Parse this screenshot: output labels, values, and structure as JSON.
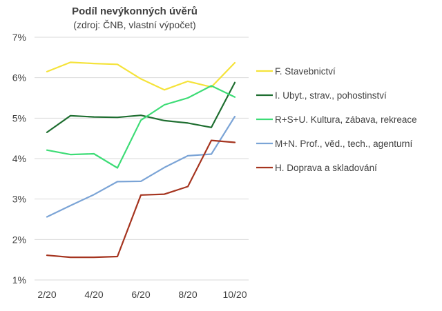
{
  "chart_data": {
    "type": "line",
    "title": "Podíl nevýkonných úvěrů",
    "subtitle": "(zdroj: ČNB, vlastní výpočet)",
    "x": [
      "2/20",
      "3/20",
      "4/20",
      "5/20",
      "6/20",
      "7/20",
      "8/20",
      "9/20",
      "10/20"
    ],
    "x_tick_labels": [
      "2/20",
      "4/20",
      "6/20",
      "8/20",
      "10/20"
    ],
    "y_tick_labels": [
      "1%",
      "2%",
      "3%",
      "4%",
      "5%",
      "6%",
      "7%"
    ],
    "ylim": [
      1,
      7
    ],
    "y_unit": "%",
    "grid": true,
    "legend_position": "right",
    "series": [
      {
        "name": "F. Stavebnictví",
        "color": "#f5e33a",
        "values": [
          6.15,
          6.38,
          6.35,
          6.33,
          5.97,
          5.7,
          5.91,
          5.77,
          6.37
        ]
      },
      {
        "name": "I. Ubyt., strav., pohostinství",
        "color": "#1e6e30",
        "values": [
          4.65,
          5.06,
          5.03,
          5.02,
          5.07,
          4.94,
          4.88,
          4.77,
          5.88
        ]
      },
      {
        "name": "R+S+U. Kultura, zábava, rekreace",
        "color": "#3ddc76",
        "values": [
          4.21,
          4.1,
          4.12,
          3.77,
          4.95,
          5.33,
          5.5,
          5.8,
          5.52
        ]
      },
      {
        "name": "M+N. Prof., věd., tech., agenturní",
        "color": "#7ba4d6",
        "values": [
          2.56,
          2.84,
          3.11,
          3.43,
          3.44,
          3.78,
          4.07,
          4.11,
          5.04
        ]
      },
      {
        "name": "H. Doprava a skladování",
        "color": "#a5341f",
        "values": [
          1.61,
          1.56,
          1.56,
          1.58,
          3.1,
          3.12,
          3.31,
          4.45,
          4.4
        ]
      }
    ]
  }
}
